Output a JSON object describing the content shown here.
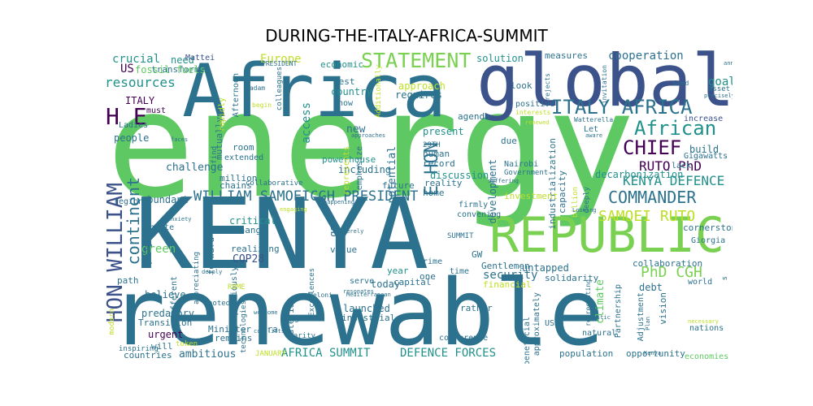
{
  "title": "DURING-THE-ITALY-AFRICA-SUMMIT",
  "words": [
    {
      "text": "energy",
      "color": "#5ec962"
    },
    {
      "text": "KENYA",
      "color": "#2c728e"
    },
    {
      "text": "renewable",
      "color": "#2c728e"
    },
    {
      "text": "Africa",
      "color": "#2c728e"
    },
    {
      "text": "global",
      "color": "#3b528b"
    },
    {
      "text": "REPUBLIC",
      "color": "#7ad151"
    },
    {
      "text": "ITALY AFRICA",
      "color": "#2c728e"
    },
    {
      "text": "STATEMENT",
      "color": "#7ad151"
    },
    {
      "text": "African",
      "color": "#21918c"
    },
    {
      "text": "CHIEF",
      "color": "#440154"
    },
    {
      "text": "RUTO PhD",
      "color": "#440154"
    },
    {
      "text": "KENYA DEFENCE",
      "color": "#21918c"
    },
    {
      "text": "COMMANDER",
      "color": "#2c728e"
    },
    {
      "text": "SAMOEI RUTO",
      "color": "#bddf26"
    },
    {
      "text": "PhD CGH",
      "color": "#7ad151"
    },
    {
      "text": "WILLIAM SAMOEICGH PRESIDENT",
      "color": "#2c728e"
    },
    {
      "text": "HON WILLIAM",
      "color": "#3b528b"
    },
    {
      "text": "continent",
      "color": "#2c728e"
    },
    {
      "text": "H E",
      "color": "#440154"
    },
    {
      "text": "E HON",
      "color": "#2c728e"
    },
    {
      "text": "resources",
      "color": "#21918c"
    },
    {
      "text": "crucial",
      "color": "#21918c"
    },
    {
      "text": "need",
      "color": "#21918c"
    },
    {
      "text": "Europe",
      "color": "#bddf26"
    },
    {
      "text": "cooperation",
      "color": "#2c728e"
    },
    {
      "text": "measures",
      "color": "#2c728e"
    },
    {
      "text": "solution",
      "color": "#21918c"
    },
    {
      "text": "goal",
      "color": "#21918c"
    },
    {
      "text": "US",
      "color": "#440154"
    },
    {
      "text": "transform",
      "color": "#2c728e"
    },
    {
      "text": "fossil fuels",
      "color": "#5ec962"
    },
    {
      "text": "Mattei",
      "color": "#3b528b"
    },
    {
      "text": "ITALY",
      "color": "#440154"
    },
    {
      "text": "must",
      "color": "#440154"
    },
    {
      "text": "economic",
      "color": "#21918c"
    },
    {
      "text": "country",
      "color": "#21918c"
    },
    {
      "text": "best",
      "color": "#2c728e"
    },
    {
      "text": "access",
      "color": "#21918c"
    },
    {
      "text": "approach",
      "color": "#bddf26"
    },
    {
      "text": "requires",
      "color": "#2c728e"
    },
    {
      "text": "look",
      "color": "#2c728e"
    },
    {
      "text": "positive",
      "color": "#2c728e"
    },
    {
      "text": "increase",
      "color": "#3b528b"
    },
    {
      "text": "build",
      "color": "#2c728e"
    },
    {
      "text": "Gigawatts",
      "color": "#2c728e"
    },
    {
      "text": "Let",
      "color": "#2c728e"
    },
    {
      "text": "challenge",
      "color": "#2c728e"
    },
    {
      "text": "million",
      "color": "#2c728e"
    },
    {
      "text": "mutually",
      "color": "#2c728e"
    },
    {
      "text": "room",
      "color": "#2c728e"
    },
    {
      "text": "extended",
      "color": "#2c728e"
    },
    {
      "text": "chains",
      "color": "#2c728e"
    },
    {
      "text": "powerhouse",
      "color": "#21918c"
    },
    {
      "text": "including",
      "color": "#2c728e"
    },
    {
      "text": "new",
      "color": "#2c728e"
    },
    {
      "text": "present",
      "color": "#21918c"
    },
    {
      "text": "29TH",
      "color": "#2c728e"
    },
    {
      "text": "human",
      "color": "#2c728e"
    },
    {
      "text": "record",
      "color": "#2c728e"
    },
    {
      "text": "potential",
      "color": "#2c728e"
    },
    {
      "text": "discussion",
      "color": "#21918c"
    },
    {
      "text": "agenda",
      "color": "#2c728e"
    },
    {
      "text": "due",
      "color": "#2c728e"
    },
    {
      "text": "Nairobi",
      "color": "#2c728e"
    },
    {
      "text": "Government",
      "color": "#2c728e"
    },
    {
      "text": "industrialization",
      "color": "#2c728e"
    },
    {
      "text": "capacity",
      "color": "#2c728e"
    },
    {
      "text": "decarbonization",
      "color": "#21918c"
    },
    {
      "text": "abundant",
      "color": "#2c728e"
    },
    {
      "text": "green",
      "color": "#5ec962"
    },
    {
      "text": "COP28",
      "color": "#3b528b"
    },
    {
      "text": "security",
      "color": "#2c728e"
    },
    {
      "text": "critical",
      "color": "#21918c"
    },
    {
      "text": "change",
      "color": "#2c728e"
    },
    {
      "text": "realizing",
      "color": "#2c728e"
    },
    {
      "text": "forward",
      "color": "#2c728e"
    },
    {
      "text": "gas",
      "color": "#2c728e"
    },
    {
      "text": "value",
      "color": "#2c728e"
    },
    {
      "text": "year",
      "color": "#21918c"
    },
    {
      "text": "Prime",
      "color": "#2c728e"
    },
    {
      "text": "SUMMIT",
      "color": "#2c728e"
    },
    {
      "text": "GW",
      "color": "#2c728e"
    },
    {
      "text": "Gentlemen",
      "color": "#2c728e"
    },
    {
      "text": "untapped",
      "color": "#2c728e"
    },
    {
      "text": "solidarity",
      "color": "#2c728e"
    },
    {
      "text": "climate",
      "color": "#5ec962"
    },
    {
      "text": "financial",
      "color": "#bddf26"
    },
    {
      "text": "debt",
      "color": "#2c728e"
    },
    {
      "text": "Partnership",
      "color": "#2c728e"
    },
    {
      "text": "collaboration",
      "color": "#2c728e"
    },
    {
      "text": "world",
      "color": "#2c728e"
    },
    {
      "text": "Giorgia",
      "color": "#2c728e"
    },
    {
      "text": "believe",
      "color": "#2c728e"
    },
    {
      "text": "predatory",
      "color": "#2c728e"
    },
    {
      "text": "Transition",
      "color": "#2c728e"
    },
    {
      "text": "urgent",
      "color": "#440154"
    },
    {
      "text": "will",
      "color": "#2c728e"
    },
    {
      "text": "countries",
      "color": "#2c728e"
    },
    {
      "text": "ambitious",
      "color": "#2c728e"
    },
    {
      "text": "AFRICA SUMMIT",
      "color": "#21918c"
    },
    {
      "text": "DEFENCE FORCES",
      "color": "#21918c"
    },
    {
      "text": "population",
      "color": "#2c728e"
    },
    {
      "text": "opportunity",
      "color": "#2c728e"
    },
    {
      "text": "economies",
      "color": "#5ec962"
    },
    {
      "text": "nations",
      "color": "#2c728e"
    },
    {
      "text": "vision",
      "color": "#2c728e"
    },
    {
      "text": "Adjustment",
      "color": "#2c728e"
    },
    {
      "text": "natural",
      "color": "#2c728e"
    },
    {
      "text": "USD",
      "color": "#2c728e"
    },
    {
      "text": "beneficial",
      "color": "#2c728e"
    },
    {
      "text": "approximately",
      "color": "#2c728e"
    },
    {
      "text": "conference",
      "color": "#2c728e"
    },
    {
      "text": "rather",
      "color": "#2c728e"
    },
    {
      "text": "launched",
      "color": "#2c728e"
    },
    {
      "text": "industrial",
      "color": "#2c728e"
    },
    {
      "text": "material",
      "color": "#2c728e"
    },
    {
      "text": "era",
      "color": "#2c728e"
    },
    {
      "text": "Minister",
      "color": "#2c728e"
    },
    {
      "text": "remains",
      "color": "#2c728e"
    },
    {
      "text": "technologies",
      "color": "#2c728e"
    },
    {
      "text": "path",
      "color": "#2c728e"
    },
    {
      "text": "different",
      "color": "#2c728e"
    },
    {
      "text": "pragmatic",
      "color": "#2c728e"
    },
    {
      "text": "invite",
      "color": "#2c728e"
    },
    {
      "text": "region",
      "color": "#2c728e"
    },
    {
      "text": "people",
      "color": "#2c728e"
    },
    {
      "text": "Ladies",
      "color": "#2c728e"
    },
    {
      "text": "Afternoon",
      "color": "#2c728e"
    },
    {
      "text": "rapidly",
      "color": "#bddf26"
    },
    {
      "text": "Madam",
      "color": "#2c728e"
    },
    {
      "text": "PRESIDENT",
      "color": "#2c728e"
    },
    {
      "text": "colleagues",
      "color": "#2c728e"
    },
    {
      "text": "now",
      "color": "#2c728e"
    },
    {
      "text": "begin",
      "color": "#bddf26"
    },
    {
      "text": "Additionally",
      "color": "#bddf26"
    },
    {
      "text": "Good",
      "color": "#2c728e"
    },
    {
      "text": "asset",
      "color": "#2c728e"
    },
    {
      "text": "invitation",
      "color": "#2c728e"
    },
    {
      "text": "rejects",
      "color": "#2c728e"
    },
    {
      "text": "interests",
      "color": "#bddf26"
    },
    {
      "text": "Watterella",
      "color": "#2c728e"
    },
    {
      "text": "lack",
      "color": "#2c728e"
    },
    {
      "text": "deeply",
      "color": "#2c728e"
    },
    {
      "text": "billion",
      "color": "#bddf26"
    },
    {
      "text": "representing",
      "color": "#2c728e"
    },
    {
      "text": "Sergio",
      "color": "#2c728e"
    },
    {
      "text": "charity",
      "color": "#2c728e"
    },
    {
      "text": "Excellences",
      "color": "#2c728e"
    },
    {
      "text": "Meloni",
      "color": "#2c728e"
    },
    {
      "text": "serve",
      "color": "#2c728e"
    },
    {
      "text": "today",
      "color": "#2c728e"
    },
    {
      "text": "capital",
      "color": "#2c728e"
    },
    {
      "text": "one",
      "color": "#2c728e"
    },
    {
      "text": "time",
      "color": "#2c728e"
    },
    {
      "text": "convening",
      "color": "#2c728e"
    },
    {
      "text": "firmly",
      "color": "#2c728e"
    },
    {
      "text": "future",
      "color": "#2c728e"
    },
    {
      "text": "home",
      "color": "#2c728e"
    },
    {
      "text": "reality",
      "color": "#2c728e"
    },
    {
      "text": "investment",
      "color": "#bddf26"
    },
    {
      "text": "development",
      "color": "#2c728e"
    },
    {
      "text": "emphasize",
      "color": "#2c728e"
    },
    {
      "text": "represents",
      "color": "#bddf26"
    },
    {
      "text": "previously",
      "color": "#2c728e"
    },
    {
      "text": "appreciating",
      "color": "#2c728e"
    },
    {
      "text": "modern",
      "color": "#bddf26"
    },
    {
      "text": "inspiring",
      "color": "#2c728e"
    },
    {
      "text": "find",
      "color": "#2c728e"
    },
    {
      "text": "noted",
      "color": "#2c728e"
    },
    {
      "text": "ROME",
      "color": "#bddf26"
    },
    {
      "text": "token",
      "color": "#bddf26"
    },
    {
      "text": "JANUARY",
      "color": "#bddf26"
    },
    {
      "text": "collaborative",
      "color": "#2c728e"
    },
    {
      "text": "s",
      "color": "#2c728e"
    },
    {
      "text": "cornerstone",
      "color": "#2c728e"
    },
    {
      "text": "approaches",
      "color": "#2c728e"
    },
    {
      "text": "suffering",
      "color": "#2c728e"
    },
    {
      "text": "Mediterranean",
      "color": "#2c728e"
    },
    {
      "text": "resonates",
      "color": "#2c728e"
    },
    {
      "text": "welcome",
      "color": "#2c728e"
    },
    {
      "text": "conflicts",
      "color": "#2c728e"
    },
    {
      "text": "paternalistic",
      "color": "#2c728e"
    },
    {
      "text": "necessary",
      "color": "#bddf26"
    },
    {
      "text": "Plan",
      "color": "#2c728e"
    },
    {
      "text": "Looking",
      "color": "#2c728e"
    },
    {
      "text": "aware",
      "color": "#2c728e"
    },
    {
      "text": "announcement",
      "color": "#2c728e"
    },
    {
      "text": "precisely",
      "color": "#2c728e"
    },
    {
      "text": "renewed",
      "color": "#bddf26"
    },
    {
      "text": "anxiety",
      "color": "#2c728e"
    },
    {
      "text": "engaging",
      "color": "#bddf26"
    },
    {
      "text": "faces",
      "color": "#2c728e"
    },
    {
      "text": "deeply",
      "color": "#2c728e"
    },
    {
      "text": "happening",
      "color": "#2c728e"
    },
    {
      "text": "merely",
      "color": "#2c728e"
    },
    {
      "text": "Kenya",
      "color": "#2c728e"
    }
  ]
}
